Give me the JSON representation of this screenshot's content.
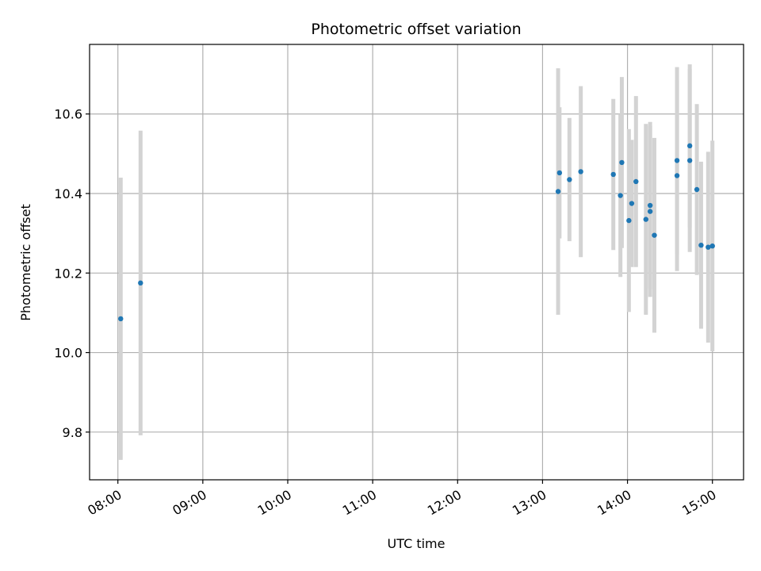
{
  "chart_data": {
    "type": "scatter",
    "title": "Photometric offset variation",
    "xlabel": "UTC time",
    "ylabel": "Photometric offset",
    "x_tick_labels": [
      "08:00",
      "09:00",
      "10:00",
      "11:00",
      "12:00",
      "13:00",
      "14:00",
      "15:00"
    ],
    "y_ticks": [
      9.8,
      10.0,
      10.2,
      10.4,
      10.6
    ],
    "y_tick_labels": [
      "9.8",
      "10.0",
      "10.2",
      "10.4",
      "10.6"
    ],
    "xlim": [
      "07:40",
      "15:22"
    ],
    "ylim": [
      9.68,
      10.775
    ],
    "grid": true,
    "marker_color": "#1f77b4",
    "errorbar_color": "#d3d3d3",
    "series": [
      {
        "points": [
          {
            "x": "08:02",
            "y": 10.085,
            "yerr": 0.355
          },
          {
            "x": "08:16",
            "y": 10.175,
            "yerr": 0.383
          },
          {
            "x": "13:11",
            "y": 10.405,
            "yerr": 0.31
          },
          {
            "x": "13:12",
            "y": 10.452,
            "yerr": 0.165
          },
          {
            "x": "13:19",
            "y": 10.435,
            "yerr": 0.155
          },
          {
            "x": "13:27",
            "y": 10.455,
            "yerr": 0.215
          },
          {
            "x": "13:50",
            "y": 10.448,
            "yerr": 0.19
          },
          {
            "x": "13:55",
            "y": 10.395,
            "yerr": 0.205
          },
          {
            "x": "13:56",
            "y": 10.478,
            "yerr": 0.215
          },
          {
            "x": "14:01",
            "y": 10.332,
            "yerr": 0.23
          },
          {
            "x": "14:03",
            "y": 10.375,
            "yerr": 0.16
          },
          {
            "x": "14:06",
            "y": 10.43,
            "yerr": 0.215
          },
          {
            "x": "14:13",
            "y": 10.335,
            "yerr": 0.24
          },
          {
            "x": "14:16",
            "y": 10.37,
            "yerr": 0.21
          },
          {
            "x": "14:16",
            "y": 10.355,
            "yerr": 0.215
          },
          {
            "x": "14:19",
            "y": 10.295,
            "yerr": 0.245
          },
          {
            "x": "14:35",
            "y": 10.483,
            "yerr": 0.235
          },
          {
            "x": "14:35",
            "y": 10.445,
            "yerr": 0.24
          },
          {
            "x": "14:44",
            "y": 10.483,
            "yerr": 0.23
          },
          {
            "x": "14:44",
            "y": 10.52,
            "yerr": 0.205
          },
          {
            "x": "14:49",
            "y": 10.41,
            "yerr": 0.215
          },
          {
            "x": "14:52",
            "y": 10.27,
            "yerr": 0.21
          },
          {
            "x": "14:57",
            "y": 10.265,
            "yerr": 0.24
          },
          {
            "x": "15:00",
            "y": 10.268,
            "yerr": 0.265
          }
        ]
      }
    ]
  }
}
